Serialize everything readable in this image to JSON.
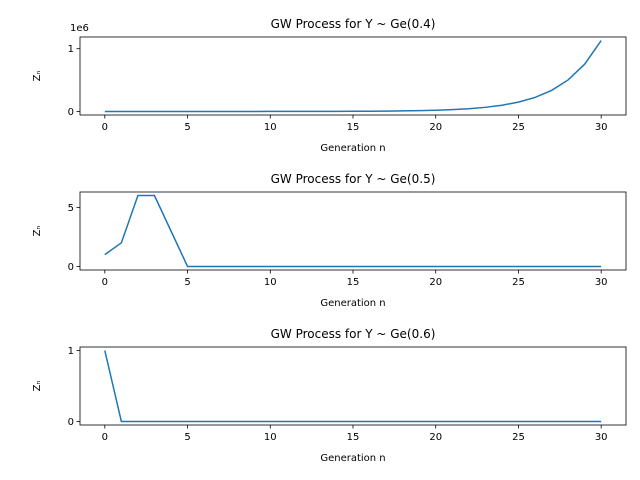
{
  "chart_data": [
    {
      "type": "line",
      "title": "GW Process for Y ~ Ge(0.4)",
      "xlabel": "Generation n",
      "ylabel": "Zₙ",
      "y_offset_label": "1e6",
      "color": "#1f77b4",
      "x": [
        0,
        1,
        2,
        3,
        4,
        5,
        6,
        7,
        8,
        9,
        10,
        11,
        12,
        13,
        14,
        15,
        16,
        17,
        18,
        19,
        20,
        21,
        22,
        23,
        24,
        25,
        26,
        27,
        28,
        29,
        30
      ],
      "values": [
        1,
        3,
        6,
        12,
        22,
        40,
        65,
        100,
        150,
        230,
        340,
        510,
        770,
        1150,
        1700,
        2600,
        3900,
        5800,
        8700,
        13000,
        19600,
        29000,
        44000,
        66000,
        99000,
        149000,
        223000,
        335000,
        502000,
        753000,
        1130000
      ],
      "xlim": [
        -1.5,
        31.5
      ],
      "xticks": [
        0,
        5,
        10,
        15,
        20,
        25,
        30
      ],
      "ylim": [
        -56500,
        1186500
      ],
      "yticks": [
        0,
        {
          "value": 1000000,
          "label": "1"
        }
      ]
    },
    {
      "type": "line",
      "title": "GW Process for Y ~ Ge(0.5)",
      "xlabel": "Generation n",
      "ylabel": "Zₙ",
      "color": "#1f77b4",
      "x": [
        0,
        1,
        2,
        3,
        4,
        5,
        6,
        7,
        8,
        9,
        10,
        11,
        12,
        13,
        14,
        15,
        16,
        17,
        18,
        19,
        20,
        21,
        22,
        23,
        24,
        25,
        26,
        27,
        28,
        29,
        30
      ],
      "values": [
        1,
        2,
        6,
        6,
        3,
        0,
        0,
        0,
        0,
        0,
        0,
        0,
        0,
        0,
        0,
        0,
        0,
        0,
        0,
        0,
        0,
        0,
        0,
        0,
        0,
        0,
        0,
        0,
        0,
        0,
        0
      ],
      "xlim": [
        -1.5,
        31.5
      ],
      "xticks": [
        0,
        5,
        10,
        15,
        20,
        25,
        30
      ],
      "ylim": [
        -0.3,
        6.3
      ],
      "yticks": [
        0,
        5
      ]
    },
    {
      "type": "line",
      "title": "GW Process for Y ~ Ge(0.6)",
      "xlabel": "Generation n",
      "ylabel": "Zₙ",
      "color": "#1f77b4",
      "x": [
        0,
        1,
        2,
        3,
        4,
        5,
        6,
        7,
        8,
        9,
        10,
        11,
        12,
        13,
        14,
        15,
        16,
        17,
        18,
        19,
        20,
        21,
        22,
        23,
        24,
        25,
        26,
        27,
        28,
        29,
        30
      ],
      "values": [
        1,
        0,
        0,
        0,
        0,
        0,
        0,
        0,
        0,
        0,
        0,
        0,
        0,
        0,
        0,
        0,
        0,
        0,
        0,
        0,
        0,
        0,
        0,
        0,
        0,
        0,
        0,
        0,
        0,
        0,
        0
      ],
      "xlim": [
        -1.5,
        31.5
      ],
      "xticks": [
        0,
        5,
        10,
        15,
        20,
        25,
        30
      ],
      "ylim": [
        -0.05,
        1.05
      ],
      "yticks": [
        0,
        1
      ]
    }
  ]
}
